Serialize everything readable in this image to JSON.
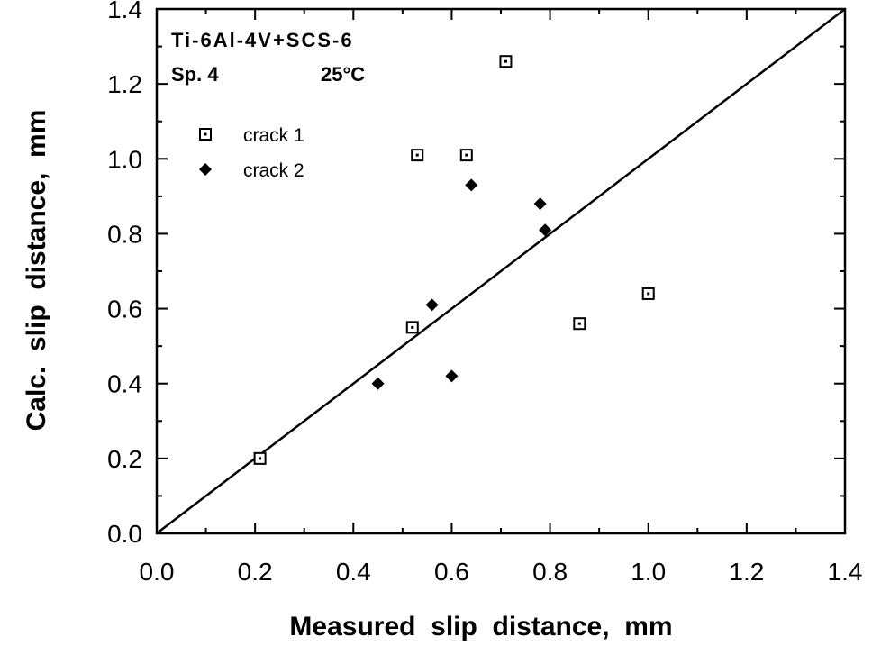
{
  "chart_data": {
    "type": "scatter",
    "xlabel": "Measured  slip  distance,  mm",
    "ylabel": "Calc.  slip  distance,  mm",
    "xlim": [
      0.0,
      1.4
    ],
    "ylim": [
      0.0,
      1.4
    ],
    "xticks": [
      "0.0",
      "0.2",
      "0.4",
      "0.6",
      "0.8",
      "1.0",
      "1.2",
      "1.4"
    ],
    "yticks": [
      "0.0",
      "0.2",
      "0.4",
      "0.6",
      "0.8",
      "1.0",
      "1.2",
      "1.4"
    ],
    "grid": false,
    "legend_position": "upper-left",
    "annotations": [
      "Ti-6Al-4V+SCS-6",
      "Sp. 4",
      "25°C"
    ],
    "reference_line": {
      "x": [
        0.0,
        1.4
      ],
      "y": [
        0.0,
        1.4
      ]
    },
    "series": [
      {
        "name": "crack 1",
        "marker": "square-dot",
        "points": [
          {
            "x": 0.21,
            "y": 0.2
          },
          {
            "x": 0.52,
            "y": 0.55
          },
          {
            "x": 0.53,
            "y": 1.01
          },
          {
            "x": 0.63,
            "y": 1.01
          },
          {
            "x": 0.71,
            "y": 1.26
          },
          {
            "x": 0.86,
            "y": 0.56
          },
          {
            "x": 1.0,
            "y": 0.64
          }
        ]
      },
      {
        "name": "crack 2",
        "marker": "filled-diamond",
        "points": [
          {
            "x": 0.45,
            "y": 0.4
          },
          {
            "x": 0.56,
            "y": 0.61
          },
          {
            "x": 0.6,
            "y": 0.42
          },
          {
            "x": 0.64,
            "y": 0.93
          },
          {
            "x": 0.78,
            "y": 0.88
          },
          {
            "x": 0.79,
            "y": 0.81
          }
        ]
      }
    ]
  }
}
